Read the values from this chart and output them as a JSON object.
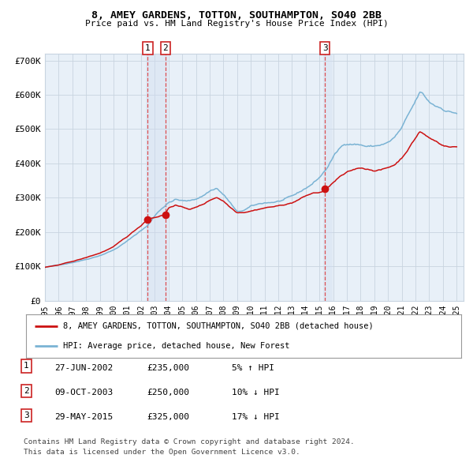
{
  "title1": "8, AMEY GARDENS, TOTTON, SOUTHAMPTON, SO40 2BB",
  "title2": "Price paid vs. HM Land Registry's House Price Index (HPI)",
  "ylim": [
    0,
    720000
  ],
  "yticks": [
    0,
    100000,
    200000,
    300000,
    400000,
    500000,
    600000,
    700000
  ],
  "ytick_labels": [
    "£0",
    "£100K",
    "£200K",
    "£300K",
    "£400K",
    "£500K",
    "£600K",
    "£700K"
  ],
  "x_start_year": 1995,
  "x_end_year": 2025,
  "hpi_color": "#7ab3d4",
  "price_color": "#cc1111",
  "dot_color": "#cc1111",
  "sale1_date": 2002.49,
  "sale1_price": 235000,
  "sale2_date": 2003.77,
  "sale2_price": 250000,
  "sale3_date": 2015.41,
  "sale3_price": 325000,
  "legend_label1": "8, AMEY GARDENS, TOTTON, SOUTHAMPTON, SO40 2BB (detached house)",
  "legend_label2": "HPI: Average price, detached house, New Forest",
  "table_rows": [
    [
      "1",
      "27-JUN-2002",
      "£235,000",
      "5% ↑ HPI"
    ],
    [
      "2",
      "09-OCT-2003",
      "£250,000",
      "10% ↓ HPI"
    ],
    [
      "3",
      "29-MAY-2015",
      "£325,000",
      "17% ↓ HPI"
    ]
  ],
  "footnote1": "Contains HM Land Registry data © Crown copyright and database right 2024.",
  "footnote2": "This data is licensed under the Open Government Licence v3.0.",
  "bg_color": "#ffffff",
  "plot_bg": "#e8f0f8",
  "grid_color": "#c8d4e0",
  "shade_color": "#d0ddf0",
  "hpi_waypoints": [
    [
      1995.0,
      97000
    ],
    [
      1996.0,
      103000
    ],
    [
      1997.0,
      112000
    ],
    [
      1998.0,
      122000
    ],
    [
      1999.0,
      135000
    ],
    [
      2000.0,
      152000
    ],
    [
      2001.0,
      178000
    ],
    [
      2002.0,
      210000
    ],
    [
      2002.5,
      225000
    ],
    [
      2003.0,
      255000
    ],
    [
      2003.5,
      278000
    ],
    [
      2004.0,
      295000
    ],
    [
      2004.5,
      305000
    ],
    [
      2005.0,
      300000
    ],
    [
      2005.5,
      298000
    ],
    [
      2006.0,
      305000
    ],
    [
      2006.5,
      315000
    ],
    [
      2007.0,
      330000
    ],
    [
      2007.5,
      340000
    ],
    [
      2008.0,
      320000
    ],
    [
      2008.5,
      295000
    ],
    [
      2009.0,
      265000
    ],
    [
      2009.5,
      270000
    ],
    [
      2010.0,
      280000
    ],
    [
      2010.5,
      285000
    ],
    [
      2011.0,
      290000
    ],
    [
      2011.5,
      292000
    ],
    [
      2012.0,
      295000
    ],
    [
      2012.5,
      300000
    ],
    [
      2013.0,
      305000
    ],
    [
      2013.5,
      315000
    ],
    [
      2014.0,
      328000
    ],
    [
      2014.5,
      342000
    ],
    [
      2015.0,
      360000
    ],
    [
      2015.5,
      385000
    ],
    [
      2016.0,
      420000
    ],
    [
      2016.5,
      445000
    ],
    [
      2017.0,
      460000
    ],
    [
      2017.5,
      462000
    ],
    [
      2018.0,
      460000
    ],
    [
      2018.5,
      455000
    ],
    [
      2019.0,
      455000
    ],
    [
      2019.5,
      460000
    ],
    [
      2020.0,
      465000
    ],
    [
      2020.5,
      480000
    ],
    [
      2021.0,
      505000
    ],
    [
      2021.5,
      540000
    ],
    [
      2022.0,
      575000
    ],
    [
      2022.3,
      600000
    ],
    [
      2022.5,
      595000
    ],
    [
      2023.0,
      570000
    ],
    [
      2023.5,
      560000
    ],
    [
      2024.0,
      555000
    ],
    [
      2024.5,
      548000
    ],
    [
      2025.0,
      545000
    ]
  ],
  "price_waypoints": [
    [
      1995.0,
      97000
    ],
    [
      1996.0,
      103000
    ],
    [
      1997.0,
      113000
    ],
    [
      1998.0,
      124000
    ],
    [
      1999.0,
      137000
    ],
    [
      2000.0,
      155000
    ],
    [
      2001.0,
      183000
    ],
    [
      2002.0,
      215000
    ],
    [
      2002.49,
      235000
    ],
    [
      2003.0,
      240000
    ],
    [
      2003.77,
      250000
    ],
    [
      2004.0,
      268000
    ],
    [
      2004.5,
      278000
    ],
    [
      2005.0,
      270000
    ],
    [
      2005.5,
      265000
    ],
    [
      2006.0,
      270000
    ],
    [
      2006.5,
      278000
    ],
    [
      2007.0,
      290000
    ],
    [
      2007.5,
      300000
    ],
    [
      2008.0,
      290000
    ],
    [
      2008.5,
      272000
    ],
    [
      2009.0,
      258000
    ],
    [
      2009.5,
      260000
    ],
    [
      2010.0,
      265000
    ],
    [
      2010.5,
      270000
    ],
    [
      2011.0,
      275000
    ],
    [
      2011.5,
      278000
    ],
    [
      2012.0,
      280000
    ],
    [
      2012.5,
      285000
    ],
    [
      2013.0,
      290000
    ],
    [
      2013.5,
      300000
    ],
    [
      2014.0,
      310000
    ],
    [
      2014.5,
      318000
    ],
    [
      2015.0,
      320000
    ],
    [
      2015.41,
      325000
    ],
    [
      2015.5,
      330000
    ],
    [
      2016.0,
      348000
    ],
    [
      2016.5,
      365000
    ],
    [
      2017.0,
      375000
    ],
    [
      2017.5,
      382000
    ],
    [
      2018.0,
      388000
    ],
    [
      2018.5,
      385000
    ],
    [
      2019.0,
      383000
    ],
    [
      2019.5,
      385000
    ],
    [
      2020.0,
      390000
    ],
    [
      2020.5,
      400000
    ],
    [
      2021.0,
      420000
    ],
    [
      2021.5,
      450000
    ],
    [
      2022.0,
      480000
    ],
    [
      2022.3,
      500000
    ],
    [
      2022.5,
      495000
    ],
    [
      2023.0,
      480000
    ],
    [
      2023.5,
      470000
    ],
    [
      2024.0,
      460000
    ],
    [
      2024.5,
      455000
    ],
    [
      2025.0,
      455000
    ]
  ]
}
